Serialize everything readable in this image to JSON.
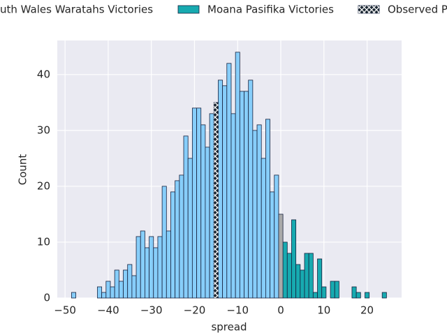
{
  "chart_data": {
    "type": "histogram",
    "x_label": "spread",
    "y_label": "Count",
    "xlim": [
      -51.8,
      28
    ],
    "ylim": [
      0,
      46.1
    ],
    "xticks": [
      {
        "value": -50,
        "label": "−50"
      },
      {
        "value": -40,
        "label": "−40"
      },
      {
        "value": -30,
        "label": "−30"
      },
      {
        "value": -20,
        "label": "−20"
      },
      {
        "value": -10,
        "label": "−10"
      },
      0,
      10,
      20
    ],
    "yticks": [
      0,
      10,
      20,
      30,
      40
    ],
    "grid": true,
    "legend": "top",
    "series": [
      {
        "name": "uth Wales Waratahs Victories",
        "color": "#87cefa",
        "bins": [
          -48.5,
          -47.5,
          -46.5,
          -45.5,
          -44.5,
          -43.5,
          -42.5,
          -41.5,
          -40.5,
          -39.5,
          -38.5,
          -37.5,
          -36.5,
          -35.5,
          -34.5,
          -33.5,
          -32.5,
          -31.5,
          -30.5,
          -29.5,
          -28.5,
          -27.5,
          -26.5,
          -25.5,
          -24.5,
          -23.5,
          -22.5,
          -21.5,
          -20.5,
          -19.5,
          -18.5,
          -17.5,
          -16.5,
          -15.5,
          -14.5,
          -13.5,
          -12.5,
          -11.5,
          -10.5,
          -9.5,
          -8.5,
          -7.5,
          -6.5,
          -5.5,
          -4.5,
          -3.5,
          -2.5,
          -1.5,
          -0.5
        ],
        "counts": [
          1,
          0,
          0,
          0,
          0,
          0,
          2,
          1,
          3,
          2,
          5,
          3,
          5,
          6,
          4,
          11,
          12,
          9,
          11,
          9,
          11,
          20,
          12,
          19,
          21,
          22,
          29,
          25,
          34,
          34,
          31,
          27,
          33,
          null,
          39,
          38,
          42,
          33,
          44,
          37,
          37,
          39,
          30,
          31,
          25,
          32,
          19,
          22
        ]
      },
      {
        "name": "Moana Pasifika Victories",
        "color": "#17aab0",
        "bins": [
          0.5,
          1.5,
          2.5,
          3.5,
          4.5,
          5.5,
          6.5,
          7.5,
          8.5,
          9.5,
          10.5,
          11.5,
          12.5,
          13.5,
          14.5,
          15.5,
          16.5,
          17.5,
          18.5,
          19.5,
          20.5,
          21.5,
          22.5,
          23.5,
          24.5
        ],
        "counts": [
          10,
          8,
          14,
          6,
          5,
          8,
          8,
          1,
          7,
          2,
          0,
          3,
          3,
          0,
          0,
          0,
          2,
          1,
          0,
          1,
          0,
          0,
          0,
          1
        ]
      },
      {
        "color": "#a9a9a9",
        "bins": [
          -0.5,
          0.5
        ],
        "counts": [
          15
        ]
      },
      {
        "name": "Observed P",
        "color": "#1c2833",
        "hatch": "x",
        "bins": [
          -15.5,
          -14.5
        ],
        "counts": [
          35
        ]
      }
    ]
  }
}
